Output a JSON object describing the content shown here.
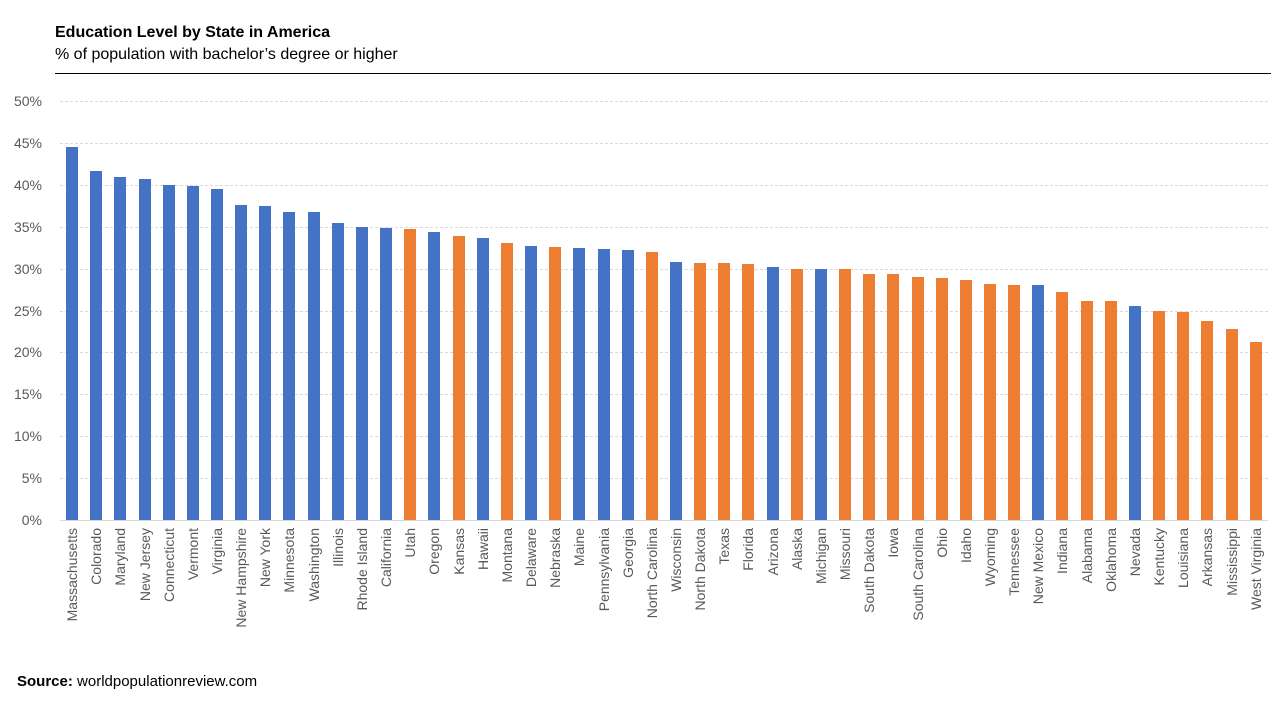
{
  "header": {
    "title": "Education Level by State in America",
    "subtitle": "% of population with bachelor’s degree or higher"
  },
  "footer": {
    "source_label": "Source:",
    "source_value": " worldpopulationreview.com"
  },
  "chart_data": {
    "type": "bar",
    "title": "Education Level by State in America",
    "subtitle": "% of population with bachelor’s degree or higher",
    "xlabel": "",
    "ylabel": "% of population with bachelor's degree or higher",
    "ylim": [
      0,
      50
    ],
    "ytick_step": 5,
    "ytick_labels": [
      "50%",
      "45%",
      "40%",
      "35%",
      "30%",
      "25%",
      "20%",
      "15%",
      "10%",
      "5%",
      "0%"
    ],
    "grid": "horizontal-dashed",
    "legend": "none",
    "palette": {
      "blue": "#4472C4",
      "orange": "#ED7D31"
    },
    "grid_color": "#D9D9D9",
    "axis_label_color": "#595959",
    "points": [
      {
        "state": "Massachusetts",
        "value": 44.5,
        "color": "blue"
      },
      {
        "state": "Colorado",
        "value": 41.6,
        "color": "blue"
      },
      {
        "state": "Maryland",
        "value": 40.9,
        "color": "blue"
      },
      {
        "state": "New Jersey",
        "value": 40.7,
        "color": "blue"
      },
      {
        "state": "Connecticut",
        "value": 40.0,
        "color": "blue"
      },
      {
        "state": "Vermont",
        "value": 39.8,
        "color": "blue"
      },
      {
        "state": "Virginia",
        "value": 39.5,
        "color": "blue"
      },
      {
        "state": "New Hampshire",
        "value": 37.6,
        "color": "blue"
      },
      {
        "state": "New York",
        "value": 37.5,
        "color": "blue"
      },
      {
        "state": "Minnesota",
        "value": 36.8,
        "color": "blue"
      },
      {
        "state": "Washington",
        "value": 36.7,
        "color": "blue"
      },
      {
        "state": "Illinois",
        "value": 35.4,
        "color": "blue"
      },
      {
        "state": "Rhode Island",
        "value": 35.0,
        "color": "blue"
      },
      {
        "state": "California",
        "value": 34.8,
        "color": "blue"
      },
      {
        "state": "Utah",
        "value": 34.7,
        "color": "orange"
      },
      {
        "state": "Oregon",
        "value": 34.4,
        "color": "blue"
      },
      {
        "state": "Kansas",
        "value": 33.9,
        "color": "orange"
      },
      {
        "state": "Hawaii",
        "value": 33.6,
        "color": "blue"
      },
      {
        "state": "Montana",
        "value": 33.1,
        "color": "orange"
      },
      {
        "state": "Delaware",
        "value": 32.7,
        "color": "blue"
      },
      {
        "state": "Nebraska",
        "value": 32.6,
        "color": "orange"
      },
      {
        "state": "Maine",
        "value": 32.5,
        "color": "blue"
      },
      {
        "state": "Pennsylvania",
        "value": 32.3,
        "color": "blue"
      },
      {
        "state": "Georgia",
        "value": 32.2,
        "color": "blue"
      },
      {
        "state": "North Carolina",
        "value": 32.0,
        "color": "orange"
      },
      {
        "state": "Wisconsin",
        "value": 30.8,
        "color": "blue"
      },
      {
        "state": "North Dakota",
        "value": 30.7,
        "color": "orange"
      },
      {
        "state": "Texas",
        "value": 30.7,
        "color": "orange"
      },
      {
        "state": "Florida",
        "value": 30.5,
        "color": "orange"
      },
      {
        "state": "Arizona",
        "value": 30.2,
        "color": "blue"
      },
      {
        "state": "Alaska",
        "value": 30.0,
        "color": "orange"
      },
      {
        "state": "Michigan",
        "value": 30.0,
        "color": "blue"
      },
      {
        "state": "Missouri",
        "value": 29.9,
        "color": "orange"
      },
      {
        "state": "South Dakota",
        "value": 29.4,
        "color": "orange"
      },
      {
        "state": "Iowa",
        "value": 29.3,
        "color": "orange"
      },
      {
        "state": "South Carolina",
        "value": 29.0,
        "color": "orange"
      },
      {
        "state": "Ohio",
        "value": 28.9,
        "color": "orange"
      },
      {
        "state": "Idaho",
        "value": 28.7,
        "color": "orange"
      },
      {
        "state": "Wyoming",
        "value": 28.2,
        "color": "orange"
      },
      {
        "state": "Tennessee",
        "value": 28.1,
        "color": "orange"
      },
      {
        "state": "New Mexico",
        "value": 28.1,
        "color": "blue"
      },
      {
        "state": "Indiana",
        "value": 27.2,
        "color": "orange"
      },
      {
        "state": "Alabama",
        "value": 26.1,
        "color": "orange"
      },
      {
        "state": "Oklahoma",
        "value": 26.1,
        "color": "orange"
      },
      {
        "state": "Nevada",
        "value": 25.5,
        "color": "blue"
      },
      {
        "state": "Kentucky",
        "value": 25.0,
        "color": "orange"
      },
      {
        "state": "Louisiana",
        "value": 24.8,
        "color": "orange"
      },
      {
        "state": "Arkansas",
        "value": 23.8,
        "color": "orange"
      },
      {
        "state": "Mississippi",
        "value": 22.8,
        "color": "orange"
      },
      {
        "state": "West Virginia",
        "value": 21.3,
        "color": "orange"
      }
    ]
  }
}
